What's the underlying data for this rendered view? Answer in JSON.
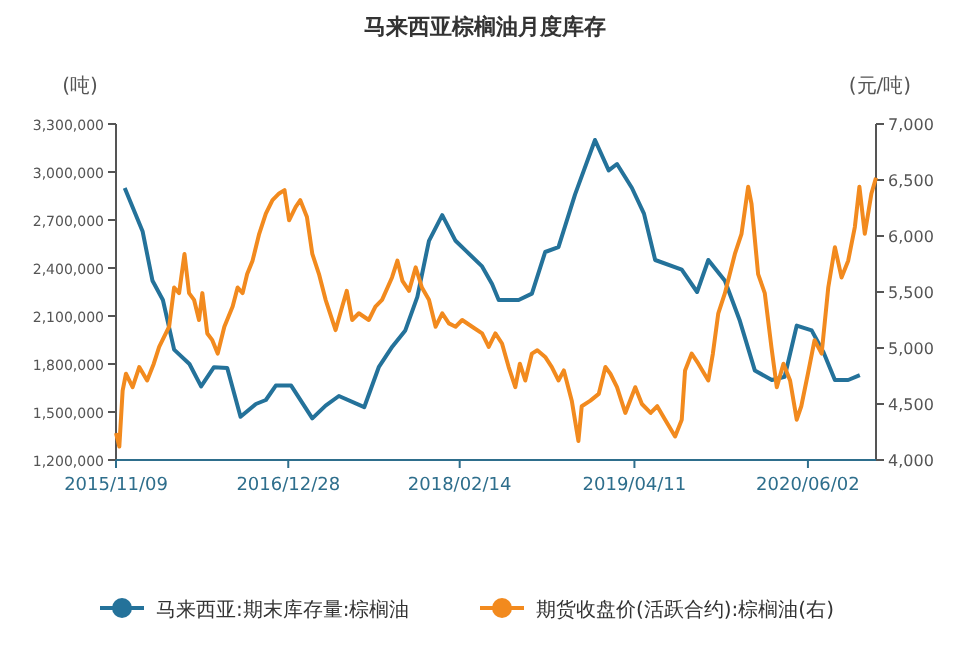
{
  "chart_data": {
    "type": "line",
    "title": "马来西亚棕榈油月度库存",
    "ylabel": "(吨)",
    "y2label": "(元/吨)",
    "legend": "bottom",
    "marker": "none",
    "xlim": [
      "2015-11-09",
      "2020-11-13"
    ],
    "xticks": [
      {
        "value": "2015-11-09",
        "label": "2015/11/09"
      },
      {
        "value": "2016-12-28",
        "label": "2016/12/28"
      },
      {
        "value": "2018-02-14",
        "label": "2018/02/14"
      },
      {
        "value": "2019-04-11",
        "label": "2019/04/11"
      },
      {
        "value": "2020-06-02",
        "label": "2020/06/02"
      }
    ],
    "ylim": [
      1200000,
      3300000
    ],
    "yticks": [
      {
        "value": 1200000,
        "label": "1,200,000"
      },
      {
        "value": 1500000,
        "label": "1,500,000"
      },
      {
        "value": 1800000,
        "label": "1,800,000"
      },
      {
        "value": 2100000,
        "label": "2,100,000"
      },
      {
        "value": 2400000,
        "label": "2,400,000"
      },
      {
        "value": 2700000,
        "label": "2,700,000"
      },
      {
        "value": 3000000,
        "label": "3,000,000"
      },
      {
        "value": 3300000,
        "label": "3,300,000"
      }
    ],
    "y2lim": [
      4000,
      7000
    ],
    "y2ticks": [
      {
        "value": 4000,
        "label": "4,000"
      },
      {
        "value": 4500,
        "label": "4,500"
      },
      {
        "value": 5000,
        "label": "5,000"
      },
      {
        "value": 5500,
        "label": "5,500"
      },
      {
        "value": 6000,
        "label": "6,000"
      },
      {
        "value": 6500,
        "label": "6,500"
      },
      {
        "value": 7000,
        "label": "7,000"
      }
    ],
    "series": [
      {
        "name": "马来西亚:期末库存量:棕榈油",
        "color": "#24729a",
        "x": [
          "2015-11-30",
          "2016-01-12",
          "2016-02-05",
          "2016-03-01",
          "2016-03-28",
          "2016-05-04",
          "2016-06-01",
          "2016-07-02",
          "2016-08-03",
          "2016-09-04",
          "2016-10-11",
          "2016-11-04",
          "2016-11-28",
          "2017-01-04",
          "2017-02-24",
          "2017-03-28",
          "2017-04-29",
          "2017-06-29",
          "2017-08-03",
          "2017-09-05",
          "2017-10-06",
          "2017-11-04",
          "2017-12-02",
          "2018-01-03",
          "2018-02-04",
          "2018-02-28",
          "2018-04-09",
          "2018-05-03",
          "2018-05-19",
          "2018-07-06",
          "2018-08-07",
          "2018-09-08",
          "2018-10-10",
          "2018-11-19",
          "2019-01-06",
          "2019-02-08",
          "2019-02-28",
          "2019-04-05",
          "2019-05-04",
          "2019-05-31",
          "2019-08-03",
          "2019-09-09",
          "2019-10-06",
          "2019-11-15",
          "2019-12-21",
          "2020-01-26",
          "2020-03-07",
          "2020-04-07",
          "2020-05-06",
          "2020-06-11",
          "2020-07-10",
          "2020-08-06",
          "2020-09-07",
          "2020-10-05"
        ],
        "values": [
          2900000,
          2630000,
          2320000,
          2200000,
          1890000,
          1800000,
          1660000,
          1780000,
          1775000,
          1470000,
          1550000,
          1575000,
          1665000,
          1665000,
          1460000,
          1540000,
          1600000,
          1530000,
          1780000,
          1910000,
          2010000,
          2220000,
          2570000,
          2730000,
          2570000,
          2510000,
          2410000,
          2300000,
          2200000,
          2200000,
          2240000,
          2500000,
          2530000,
          2860000,
          3200000,
          3010000,
          3050000,
          2900000,
          2740000,
          2450000,
          2390000,
          2250000,
          2450000,
          2320000,
          2070000,
          1760000,
          1700000,
          1720000,
          2040000,
          2010000,
          1870000,
          1700000,
          1700000,
          1730000
        ]
      },
      {
        "name": "期货收盘价(活跃合约):棕榈油(右)",
        "color": "#f28a1e",
        "axis": "y2",
        "x": [
          "2015-11-09",
          "2015-11-17",
          "2015-11-25",
          "2015-12-03",
          "2015-12-19",
          "2016-01-04",
          "2016-01-23",
          "2016-02-08",
          "2016-02-21",
          "2016-03-16",
          "2016-03-28",
          "2016-04-09",
          "2016-04-22",
          "2016-05-03",
          "2016-05-15",
          "2016-05-27",
          "2016-06-04",
          "2016-06-16",
          "2016-06-28",
          "2016-07-11",
          "2016-07-27",
          "2016-08-16",
          "2016-08-28",
          "2016-09-09",
          "2016-09-20",
          "2016-10-03",
          "2016-10-19",
          "2016-11-04",
          "2016-11-20",
          "2016-12-06",
          "2016-12-19",
          "2016-12-30",
          "2017-01-15",
          "2017-01-26",
          "2017-02-11",
          "2017-02-24",
          "2017-03-12",
          "2017-03-28",
          "2017-04-21",
          "2017-05-07",
          "2017-05-18",
          "2017-05-31",
          "2017-06-16",
          "2017-07-10",
          "2017-07-26",
          "2017-08-11",
          "2017-09-04",
          "2017-09-17",
          "2017-09-29",
          "2017-10-15",
          "2017-10-31",
          "2017-11-15",
          "2017-12-02",
          "2017-12-18",
          "2018-01-03",
          "2018-01-19",
          "2018-02-04",
          "2018-02-20",
          "2018-03-16",
          "2018-04-09",
          "2018-04-25",
          "2018-05-11",
          "2018-05-27",
          "2018-06-12",
          "2018-06-28",
          "2018-07-09",
          "2018-07-22",
          "2018-08-07",
          "2018-08-20",
          "2018-09-08",
          "2018-09-24",
          "2018-10-10",
          "2018-10-23",
          "2018-11-11",
          "2018-11-27",
          "2018-12-05",
          "2018-12-26",
          "2019-01-15",
          "2019-01-31",
          "2019-02-12",
          "2019-02-28",
          "2019-03-20",
          "2019-04-13",
          "2019-04-29",
          "2019-05-20",
          "2019-06-05",
          "2019-06-24",
          "2019-07-18",
          "2019-08-03",
          "2019-08-11",
          "2019-08-27",
          "2019-09-12",
          "2019-10-06",
          "2019-10-17",
          "2019-10-30",
          "2019-11-15",
          "2019-12-09",
          "2019-12-25",
          "2020-01-10",
          "2020-01-18",
          "2020-02-03",
          "2020-02-19",
          "2020-03-06",
          "2020-03-19",
          "2020-04-04",
          "2020-04-20",
          "2020-05-06",
          "2020-05-17",
          "2020-06-02",
          "2020-06-18",
          "2020-07-05",
          "2020-07-21",
          "2020-08-06",
          "2020-08-22",
          "2020-09-07",
          "2020-09-23",
          "2020-10-04",
          "2020-10-17",
          "2020-11-02",
          "2020-11-13"
        ],
        "values": [
          4240,
          4120,
          4620,
          4770,
          4650,
          4830,
          4710,
          4860,
          5010,
          5190,
          5540,
          5490,
          5840,
          5490,
          5430,
          5250,
          5490,
          5130,
          5070,
          4950,
          5190,
          5370,
          5540,
          5490,
          5660,
          5780,
          6020,
          6200,
          6320,
          6380,
          6410,
          6140,
          6260,
          6320,
          6170,
          5840,
          5660,
          5430,
          5160,
          5370,
          5510,
          5250,
          5310,
          5250,
          5370,
          5430,
          5630,
          5780,
          5600,
          5510,
          5720,
          5540,
          5430,
          5190,
          5310,
          5220,
          5190,
          5250,
          5190,
          5130,
          5010,
          5130,
          5040,
          4830,
          4650,
          4860,
          4710,
          4950,
          4980,
          4920,
          4830,
          4710,
          4800,
          4530,
          4170,
          4480,
          4530,
          4590,
          4830,
          4770,
          4650,
          4420,
          4650,
          4500,
          4420,
          4480,
          4360,
          4210,
          4360,
          4800,
          4950,
          4860,
          4710,
          4950,
          5310,
          5490,
          5840,
          6020,
          6440,
          6290,
          5660,
          5490,
          5010,
          4650,
          4860,
          4710,
          4360,
          4480,
          4770,
          5070,
          4950,
          5540,
          5900,
          5630,
          5780,
          6080,
          6440,
          6020,
          6380,
          6520
        ]
      }
    ]
  }
}
